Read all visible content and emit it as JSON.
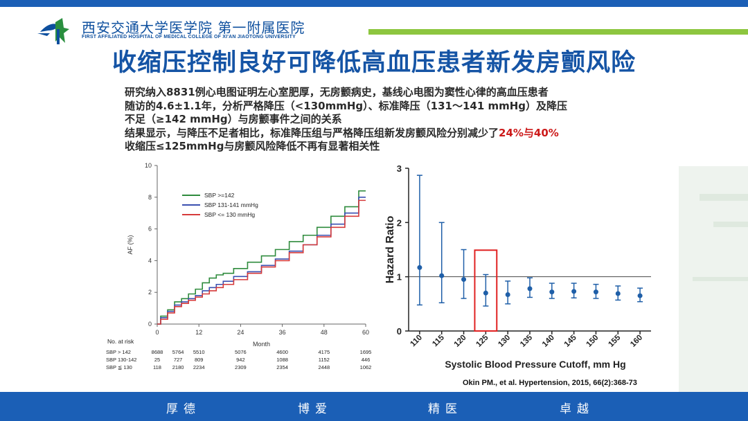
{
  "header": {
    "hospital_cn": "西安交通大学医学院 第一附属医院",
    "hospital_en": "FIRST AFFILIATED HOSPITAL OF MEDICAL COLLEGE OF XI'AN JIAOTONG UNIVERSITY",
    "colors": {
      "brand_blue": "#1b5fb6",
      "green": "#8dc63f",
      "title_blue": "#1554a5"
    }
  },
  "title": "收缩压控制良好可降低高血压患者新发房颤风险",
  "body": {
    "line1": "研究纳入8831例心电图证明左心室肥厚，无房颤病史，基线心电图为窦性心律的高血压患者",
    "line2": "随访的4.6±1.1年，分析严格降压（<130mmHg）、标准降压（131～141 mmHg）及降压",
    "line3": "不足（≥142 mmHg）与房颤事件之间的关系",
    "line4_prefix": "结果显示，与降压不足者相比，标准降压组与严格降压组新发房颤风险分别减少了",
    "line4_highlight": "24%与40%",
    "line5": "收缩压≤125mmHg与房颤风险降低不再有显著相关性"
  },
  "chart_data": [
    {
      "type": "line",
      "ylabel": "AF (%)",
      "xlabel": "Month",
      "xlim": [
        0,
        60
      ],
      "ylim": [
        0,
        10
      ],
      "x_ticks": [
        0,
        12,
        24,
        36,
        48,
        60
      ],
      "y_ticks": [
        0,
        2,
        4,
        6,
        8,
        10
      ],
      "legend_placement": "top-left",
      "series": [
        {
          "name": "SBP >=142",
          "color": "#2e8b3c",
          "points": [
            [
              0,
              0
            ],
            [
              2,
              0.5
            ],
            [
              4,
              0.9
            ],
            [
              6,
              1.4
            ],
            [
              8,
              1.6
            ],
            [
              10,
              1.9
            ],
            [
              12,
              2.2
            ],
            [
              14,
              2.6
            ],
            [
              16,
              2.9
            ],
            [
              18,
              3.1
            ],
            [
              20,
              3.2
            ],
            [
              24,
              3.5
            ],
            [
              28,
              3.9
            ],
            [
              32,
              4.3
            ],
            [
              36,
              4.7
            ],
            [
              40,
              5.2
            ],
            [
              44,
              5.6
            ],
            [
              48,
              6.1
            ],
            [
              52,
              6.8
            ],
            [
              56,
              7.4
            ],
            [
              60,
              8.4
            ]
          ]
        },
        {
          "name": "SBP 131-141 mmHg",
          "color": "#3a4fb0",
          "points": [
            [
              0,
              0
            ],
            [
              2,
              0.4
            ],
            [
              4,
              0.8
            ],
            [
              6,
              1.2
            ],
            [
              8,
              1.4
            ],
            [
              10,
              1.6
            ],
            [
              12,
              1.8
            ],
            [
              14,
              2.1
            ],
            [
              16,
              2.3
            ],
            [
              18,
              2.5
            ],
            [
              20,
              2.7
            ],
            [
              24,
              3.0
            ],
            [
              28,
              3.3
            ],
            [
              32,
              3.7
            ],
            [
              36,
              4.1
            ],
            [
              40,
              4.6
            ],
            [
              44,
              5.0
            ],
            [
              48,
              5.6
            ],
            [
              52,
              6.3
            ],
            [
              56,
              7.0
            ],
            [
              60,
              8.0
            ]
          ]
        },
        {
          "name": "SBP <= 130 mmHg",
          "color": "#d63a3a",
          "points": [
            [
              0,
              0
            ],
            [
              2,
              0.3
            ],
            [
              4,
              0.7
            ],
            [
              6,
              1.1
            ],
            [
              8,
              1.3
            ],
            [
              10,
              1.5
            ],
            [
              12,
              1.7
            ],
            [
              14,
              1.9
            ],
            [
              16,
              2.1
            ],
            [
              18,
              2.3
            ],
            [
              20,
              2.5
            ],
            [
              24,
              2.8
            ],
            [
              28,
              3.2
            ],
            [
              32,
              3.6
            ],
            [
              36,
              4.0
            ],
            [
              40,
              4.5
            ],
            [
              44,
              5.0
            ],
            [
              48,
              5.5
            ],
            [
              52,
              6.1
            ],
            [
              56,
              6.8
            ],
            [
              60,
              7.8
            ]
          ]
        }
      ],
      "risk_table": {
        "title": "No. at risk",
        "rows": [
          {
            "label": "SBP > 142",
            "values": [
              "8688",
              "5764",
              "5510",
              "5076",
              "4600",
              "4175",
              "1695"
            ]
          },
          {
            "label": "SBP 130-142",
            "values": [
              "25",
              "727",
              "809",
              "942",
              "1088",
              "1152",
              "446"
            ]
          },
          {
            "label": "SBP ≦ 130",
            "values": [
              "118",
              "2180",
              "2234",
              "2309",
              "2354",
              "2448",
              "1062"
            ]
          }
        ],
        "months": [
          0,
          6,
          12,
          24,
          36,
          48,
          60
        ]
      }
    },
    {
      "type": "scatter",
      "ylabel": "Hazard Ratio",
      "xlabel": "Systolic Blood Pressure Cutoff, mm Hg",
      "ylim": [
        0,
        3
      ],
      "y_ticks": [
        0,
        1,
        2,
        3
      ],
      "categories": [
        "110",
        "115",
        "120",
        "125",
        "130",
        "135",
        "140",
        "145",
        "150",
        "155",
        "160"
      ],
      "values": [
        1.17,
        1.02,
        0.95,
        0.7,
        0.67,
        0.78,
        0.72,
        0.73,
        0.72,
        0.69,
        0.65
      ],
      "ci_low": [
        0.48,
        0.52,
        0.6,
        0.46,
        0.5,
        0.62,
        0.6,
        0.61,
        0.6,
        0.57,
        0.54
      ],
      "ci_high": [
        2.87,
        2.0,
        1.5,
        1.04,
        0.92,
        0.98,
        0.88,
        0.88,
        0.86,
        0.83,
        0.79
      ],
      "reference_line": 1,
      "highlight_category": "125",
      "marker_color": "#1f5fa8",
      "highlight_color": "#e02020"
    }
  ],
  "citation": "Okin PM., et al. Hypertension, 2015, 66(2):368-73",
  "footer": {
    "items": [
      "厚德",
      "博爱",
      "精医",
      "卓越"
    ]
  }
}
